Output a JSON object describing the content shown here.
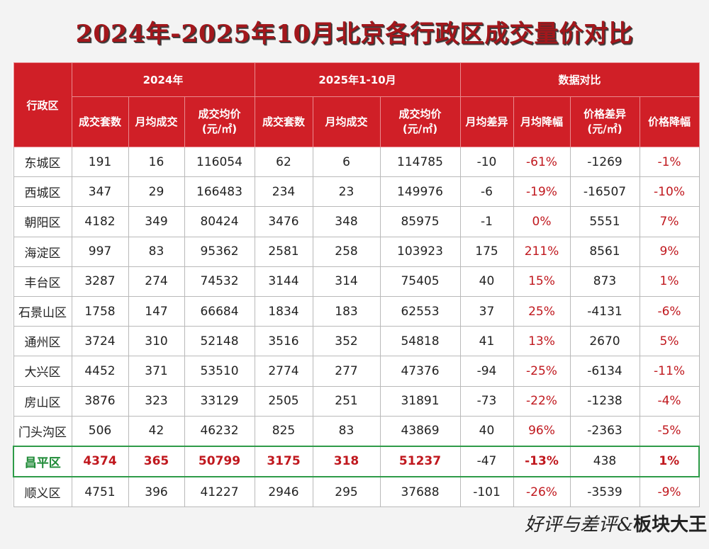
{
  "title": "2024年-2025年10月北京各行政区成交量价对比",
  "header": {
    "district": "行政区",
    "group_2024": "2024年",
    "group_2025": "2025年1-10月",
    "group_compare": "数据对比",
    "cols": {
      "deals": "成交套数",
      "monthly": "月均成交",
      "avg_price": "成交均价",
      "unit": "(元/㎡)",
      "monthly_diff": "月均差异",
      "monthly_change": "月均降幅",
      "price_diff": "价格差异",
      "price_change": "价格降幅"
    }
  },
  "rows": [
    [
      "东城区",
      "191",
      "16",
      "116054",
      "62",
      "6",
      "114785",
      "-10",
      "-61%",
      "-1269",
      "-1%"
    ],
    [
      "西城区",
      "347",
      "29",
      "166483",
      "234",
      "23",
      "149976",
      "-6",
      "-19%",
      "-16507",
      "-10%"
    ],
    [
      "朝阳区",
      "4182",
      "349",
      "80424",
      "3476",
      "348",
      "85975",
      "-1",
      "0%",
      "5551",
      "7%"
    ],
    [
      "海淀区",
      "997",
      "83",
      "95362",
      "2581",
      "258",
      "103923",
      "175",
      "211%",
      "8561",
      "9%"
    ],
    [
      "丰台区",
      "3287",
      "274",
      "74532",
      "3144",
      "314",
      "75405",
      "40",
      "15%",
      "873",
      "1%"
    ],
    [
      "石景山区",
      "1758",
      "147",
      "66684",
      "1834",
      "183",
      "62553",
      "37",
      "25%",
      "-4131",
      "-6%"
    ],
    [
      "通州区",
      "3724",
      "310",
      "52148",
      "3516",
      "352",
      "54818",
      "41",
      "13%",
      "2670",
      "5%"
    ],
    [
      "大兴区",
      "4452",
      "371",
      "53510",
      "2774",
      "277",
      "47376",
      "-94",
      "-25%",
      "-6134",
      "-11%"
    ],
    [
      "房山区",
      "3876",
      "323",
      "33129",
      "2505",
      "251",
      "31891",
      "-73",
      "-22%",
      "-1238",
      "-4%"
    ],
    [
      "门头沟区",
      "506",
      "42",
      "46232",
      "825",
      "83",
      "43869",
      "40",
      "96%",
      "-2363",
      "-5%"
    ],
    [
      "昌平区",
      "4374",
      "365",
      "50799",
      "3175",
      "318",
      "51237",
      "-47",
      "-13%",
      "438",
      "1%"
    ],
    [
      "顺义区",
      "4751",
      "396",
      "41227",
      "2946",
      "295",
      "37688",
      "-101",
      "-26%",
      "-3539",
      "-9%"
    ]
  ],
  "highlight_district": "昌平区",
  "watermark": {
    "left": "好评与差评",
    "amp": "&",
    "right": "板块大王"
  }
}
